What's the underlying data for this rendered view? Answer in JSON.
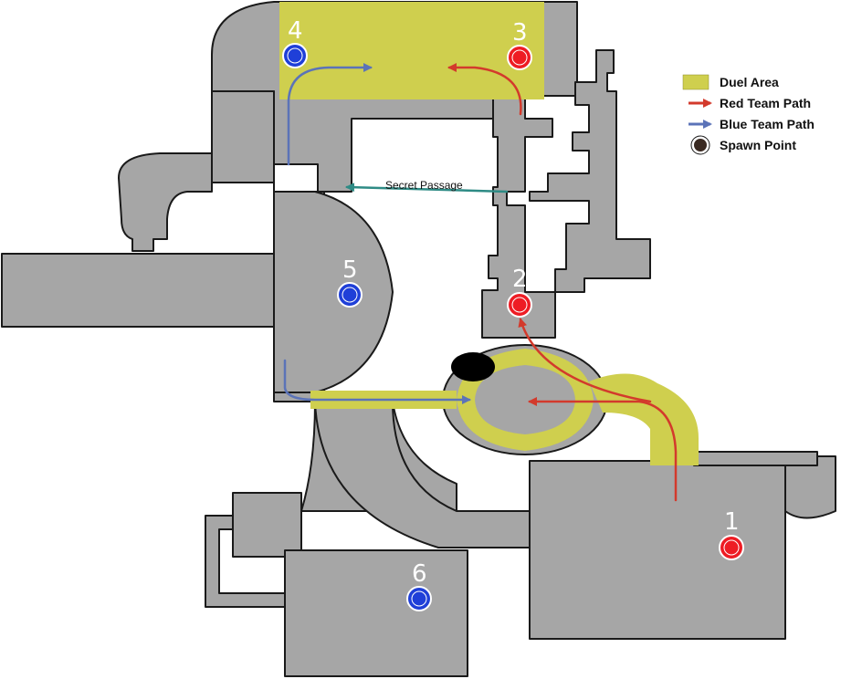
{
  "map": {
    "colors": {
      "floor": "#a6a6a6",
      "floor_edge": "#1a1a1a",
      "duel_area": "#cfcf4e",
      "red": "#ee1c24",
      "blue": "#1f3fd8",
      "red_path": "#d33a2c",
      "blue_path": "#5b73b8",
      "secret_path": "#2e8b85",
      "void": "#000000"
    },
    "legend": {
      "duel_area": "Duel Area",
      "red_team_path": "Red Team Path",
      "blue_team_path": "Blue Team Path",
      "spawn_point": "Spawn Point"
    },
    "labels": {
      "secret_passage": "Secret Passage"
    },
    "spawns": [
      {
        "label": "1",
        "team": "red"
      },
      {
        "label": "2",
        "team": "red"
      },
      {
        "label": "3",
        "team": "red"
      },
      {
        "label": "4",
        "team": "blue"
      },
      {
        "label": "5",
        "team": "blue"
      },
      {
        "label": "6",
        "team": "blue"
      }
    ]
  }
}
